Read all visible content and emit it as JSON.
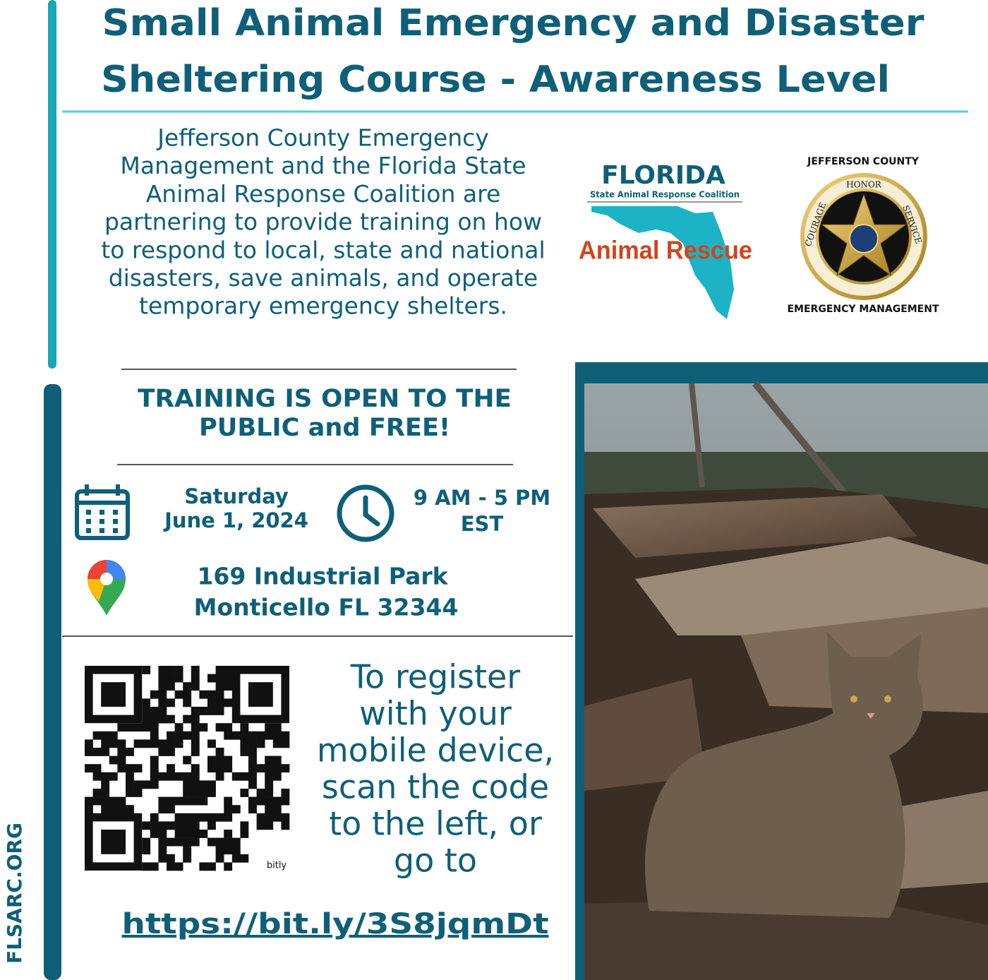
{
  "header": {
    "title_lines": [
      "Small Animal Emergency and Disaster",
      "Sheltering Course - Awareness Level"
    ]
  },
  "intro": {
    "lines": [
      "Jefferson County Emergency",
      "Management and the Florida State",
      "Animal Response Coalition are",
      "partnering to provide training on how",
      "to respond to local, state and national",
      "disasters, save animals, and operate",
      "temporary emergency shelters."
    ]
  },
  "logos": {
    "florida": {
      "name": "FLORIDA",
      "subtitle": "State Animal Response Coalition",
      "tagline": "Animal Rescue"
    },
    "jefferson": {
      "top": "JEFFERSON COUNTY",
      "bottom": "EMERGENCY MANAGEMENT",
      "ring": [
        "COURAGE",
        "HONOR",
        "SERVICE"
      ]
    }
  },
  "announcement": {
    "lines": [
      "TRAINING IS OPEN TO THE",
      "PUBLIC and FREE!"
    ]
  },
  "event": {
    "date_lines": [
      "Saturday",
      "June 1, 2024"
    ],
    "time_lines": [
      "9 AM - 5 PM",
      "EST"
    ],
    "address_lines": [
      "169 Industrial Park",
      "Monticello FL 32344"
    ]
  },
  "registration": {
    "qr_label": "bitly",
    "lines": [
      "To register",
      "with your",
      "mobile device,",
      "scan the code",
      "to the left, or",
      "go to"
    ],
    "url": "https://bit.ly/3S8jqmDt"
  },
  "sidebar": {
    "website": "FLSARC.ORG"
  }
}
